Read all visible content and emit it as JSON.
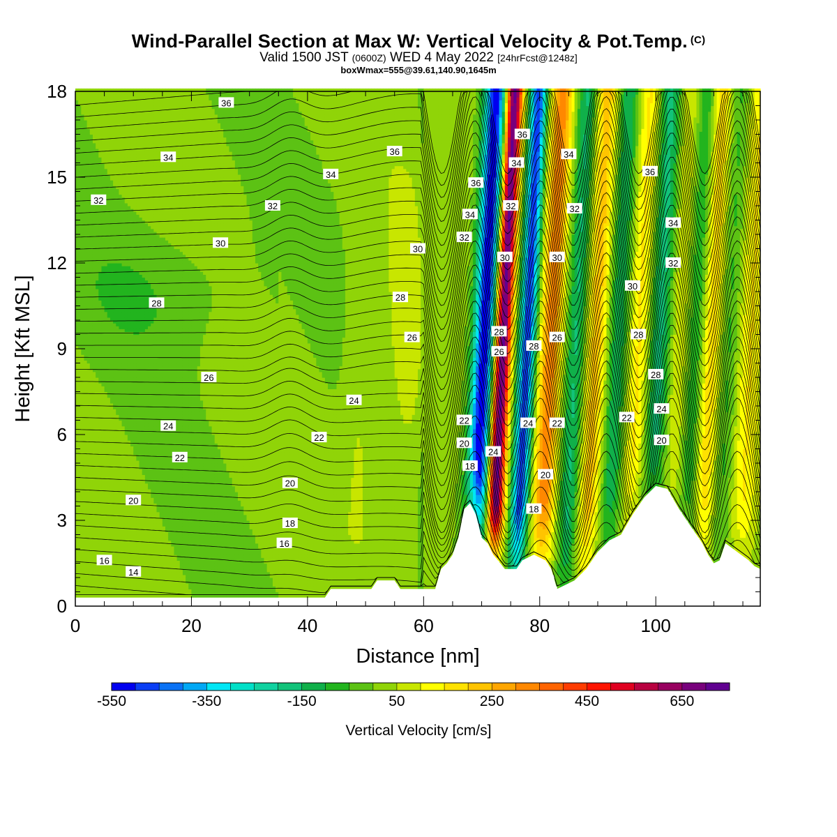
{
  "header": {
    "title": "Wind-Parallel Section at Max W: Vertical Velocity & Pot.Temp.",
    "copyright": "(C)",
    "valid_main": "Valid 1500 JST",
    "valid_utc": "(0600Z)",
    "valid_date": "WED 4 May 2022",
    "forecast": "[24hrFcst@1248z]",
    "boxinfo": "boxWmax=555@39.61,140.90,1645m"
  },
  "chart_data": {
    "type": "heatmap",
    "title": "Wind-Parallel Section at Max W: Vertical Velocity & Pot.Temp.",
    "xlabel": "Distance [nm]",
    "ylabel": "Height [Kft MSL]",
    "xlim": [
      0,
      118
    ],
    "ylim": [
      0,
      18
    ],
    "x_ticks": [
      "0",
      "20",
      "40",
      "60",
      "80",
      "100"
    ],
    "y_ticks": [
      "0",
      "3",
      "6",
      "9",
      "12",
      "15",
      "18"
    ],
    "colorbar": {
      "label": "Vertical Velocity [cm/s]",
      "tick_labels": [
        "-550",
        "-350",
        "-150",
        "50",
        "250",
        "450",
        "650"
      ],
      "tick_values": [
        -550,
        -350,
        -150,
        50,
        250,
        450,
        650
      ],
      "min": -550,
      "max": 750,
      "step": 50,
      "colors": [
        "#0000f0",
        "#0a3ef5",
        "#0a72f5",
        "#00a8f5",
        "#00e6f5",
        "#00e0c8",
        "#10d2a0",
        "#12c37a",
        "#10b04a",
        "#22b41e",
        "#5cc214",
        "#90d408",
        "#c8e600",
        "#ffff00",
        "#ffe200",
        "#ffc400",
        "#ffa600",
        "#ff8800",
        "#ff6400",
        "#ff3c00",
        "#ff1400",
        "#e00020",
        "#b80040",
        "#980060",
        "#78007c",
        "#600090"
      ]
    },
    "terrain": [
      [
        0,
        0.3
      ],
      [
        35,
        0.3
      ],
      [
        43,
        0.3
      ],
      [
        44,
        0.6
      ],
      [
        51,
        0.6
      ],
      [
        52,
        0.9
      ],
      [
        55,
        0.9
      ],
      [
        56,
        0.6
      ],
      [
        62,
        0.6
      ],
      [
        63,
        1.3
      ],
      [
        64,
        1.5
      ],
      [
        65,
        1.8
      ],
      [
        66,
        2.4
      ],
      [
        67,
        3.4
      ],
      [
        68,
        3.6
      ],
      [
        69,
        3.2
      ],
      [
        70,
        2.4
      ],
      [
        71,
        2.2
      ],
      [
        72,
        1.8
      ],
      [
        74,
        1.3
      ],
      [
        76,
        1.3
      ],
      [
        77,
        1.6
      ],
      [
        79,
        1.8
      ],
      [
        81,
        1.6
      ],
      [
        82,
        1.3
      ],
      [
        83,
        0.6
      ],
      [
        86,
        0.9
      ],
      [
        88,
        1.3
      ],
      [
        90,
        1.9
      ],
      [
        92,
        2.3
      ],
      [
        94,
        2.5
      ],
      [
        96,
        3.2
      ],
      [
        98,
        3.8
      ],
      [
        100,
        4.2
      ],
      [
        102,
        4.1
      ],
      [
        104,
        3.4
      ],
      [
        106,
        2.8
      ],
      [
        108,
        2.2
      ],
      [
        109,
        1.8
      ],
      [
        110,
        1.5
      ],
      [
        111,
        1.6
      ],
      [
        112,
        2.2
      ],
      [
        114,
        1.9
      ],
      [
        116,
        1.6
      ],
      [
        117,
        1.4
      ],
      [
        118,
        1.3
      ]
    ],
    "theta_contours": {
      "unit": "C",
      "labels": [
        {
          "text": "36",
          "x": 26,
          "y": 17.6
        },
        {
          "text": "34",
          "x": 16,
          "y": 15.7
        },
        {
          "text": "32",
          "x": 4,
          "y": 14.2
        },
        {
          "text": "32",
          "x": 34,
          "y": 14.0
        },
        {
          "text": "34",
          "x": 44,
          "y": 15.1
        },
        {
          "text": "36",
          "x": 55,
          "y": 15.9
        },
        {
          "text": "30",
          "x": 25,
          "y": 12.7
        },
        {
          "text": "30",
          "x": 59,
          "y": 12.5
        },
        {
          "text": "28",
          "x": 14,
          "y": 10.6
        },
        {
          "text": "28",
          "x": 56,
          "y": 10.8
        },
        {
          "text": "26",
          "x": 58,
          "y": 9.4
        },
        {
          "text": "26",
          "x": 23,
          "y": 8.0
        },
        {
          "text": "24",
          "x": 48,
          "y": 7.2
        },
        {
          "text": "24",
          "x": 16,
          "y": 6.3
        },
        {
          "text": "22",
          "x": 42,
          "y": 5.9
        },
        {
          "text": "22",
          "x": 18,
          "y": 5.2
        },
        {
          "text": "20",
          "x": 37,
          "y": 4.3
        },
        {
          "text": "20",
          "x": 10,
          "y": 3.7
        },
        {
          "text": "18",
          "x": 37,
          "y": 2.9
        },
        {
          "text": "16",
          "x": 36,
          "y": 2.2
        },
        {
          "text": "16",
          "x": 5,
          "y": 1.6
        },
        {
          "text": "14",
          "x": 10,
          "y": 1.2
        },
        {
          "text": "36",
          "x": 69,
          "y": 14.8
        },
        {
          "text": "34",
          "x": 68,
          "y": 13.7
        },
        {
          "text": "32",
          "x": 67,
          "y": 12.9
        },
        {
          "text": "22",
          "x": 67,
          "y": 6.5
        },
        {
          "text": "20",
          "x": 67,
          "y": 5.7
        },
        {
          "text": "18",
          "x": 68,
          "y": 4.9
        },
        {
          "text": "36",
          "x": 77,
          "y": 16.5
        },
        {
          "text": "34",
          "x": 76,
          "y": 15.5
        },
        {
          "text": "32",
          "x": 75,
          "y": 14.0
        },
        {
          "text": "30",
          "x": 74,
          "y": 12.2
        },
        {
          "text": "28",
          "x": 73,
          "y": 9.6
        },
        {
          "text": "26",
          "x": 73,
          "y": 8.9
        },
        {
          "text": "24",
          "x": 72,
          "y": 5.4
        },
        {
          "text": "28",
          "x": 79,
          "y": 9.1
        },
        {
          "text": "26",
          "x": 83,
          "y": 9.4
        },
        {
          "text": "24",
          "x": 78,
          "y": 6.4
        },
        {
          "text": "22",
          "x": 83,
          "y": 6.4
        },
        {
          "text": "20",
          "x": 81,
          "y": 4.6
        },
        {
          "text": "18",
          "x": 79,
          "y": 3.4
        },
        {
          "text": "34",
          "x": 85,
          "y": 15.8
        },
        {
          "text": "32",
          "x": 86,
          "y": 13.9
        },
        {
          "text": "30",
          "x": 83,
          "y": 12.2
        },
        {
          "text": "36",
          "x": 99,
          "y": 15.2
        },
        {
          "text": "34",
          "x": 103,
          "y": 13.4
        },
        {
          "text": "32",
          "x": 103,
          "y": 12.0
        },
        {
          "text": "30",
          "x": 96,
          "y": 11.2
        },
        {
          "text": "28",
          "x": 97,
          "y": 9.5
        },
        {
          "text": "28",
          "x": 100,
          "y": 8.1
        },
        {
          "text": "24",
          "x": 101,
          "y": 6.9
        },
        {
          "text": "22",
          "x": 95,
          "y": 6.6
        },
        {
          "text": "20",
          "x": 101,
          "y": 5.8
        }
      ]
    }
  }
}
